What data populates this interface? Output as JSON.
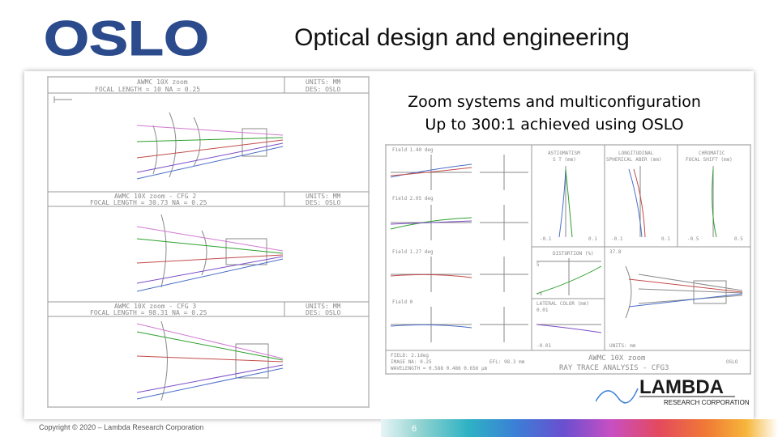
{
  "slide": {
    "logo_text": "OSLO",
    "title": "Optical design and engineering",
    "caption_line1": "Zoom systems and multiconfiguration",
    "caption_line2": "Up to 300:1 achieved using OSLO",
    "copyright": "Copyright © 2020 – Lambda Research Corporation",
    "page_number": "6"
  },
  "zoom_panel": {
    "configs": [
      {
        "title": "AWMC 10X zoom",
        "focal": "FOCAL LENGTH = 10   NA = 0.25",
        "units": "UNITS: MM",
        "des": "DES: OSLO"
      },
      {
        "title": "AWMC 10X zoom - CFG 2",
        "focal": "FOCAL LENGTH = 30.73   NA = 0.25",
        "units": "UNITS: MM",
        "des": "DES: OSLO"
      },
      {
        "title": "AWMC 10X zoom - CFG 3",
        "focal": "FOCAL LENGTH = 98.31   NA = 0.25",
        "units": "UNITS: MM",
        "des": "DES: OSLO"
      }
    ]
  },
  "analysis_panel": {
    "field_labels": [
      "Field 1.40 deg",
      "Field 2.05 deg",
      "Field 1.27 deg",
      "Field 0"
    ],
    "plot_titles": {
      "astigmatism": "ASTIGMATISM",
      "astig_units": "S T (mm)",
      "longitudinal": "LONGITUDINAL",
      "spherical": "SPHERICAL ABER (mm)",
      "chromatic": "CHROMATIC",
      "focal_shift": "FOCAL SHIFT (mm)",
      "distortion": "DISTORTION (%)",
      "lateral_color": "LATERAL COLOR (mm)"
    },
    "ticks": {
      "astig_min": "-0.1",
      "astig_max": "0.1",
      "sph_min": "-0.1",
      "sph_max": "0.1",
      "chrom_min": "-0.5",
      "chrom_max": "0.5",
      "dist_min": "-5",
      "dist_max": "5",
      "lat_top": "0.01",
      "lat_bottom": "-0.01",
      "scale": "37.8"
    },
    "bottom": {
      "field": "FIELD: 2.1deg",
      "na": "IMAGE NA: 0.25",
      "wavelength": "WAVELENGTH = 0.588  0.486  0.656 µm",
      "efl": "EFL: 98.3 mm",
      "units": "UNITS: mm",
      "title": "AWMC 10X zoom",
      "subtitle": "RAY TRACE ANALYSIS - CFG3",
      "brand": "OSLO"
    }
  },
  "lambda_logo": {
    "name": "LAMBDA",
    "sub": "RESEARCH CORPORATION"
  },
  "colors": {
    "oslo_blue": "#2b4b8c",
    "footer_gradient": [
      "#8fd3d0",
      "#2eb2c4",
      "#3b7fd6",
      "#6a4fd0",
      "#c74fc2",
      "#e4495d",
      "#f07a35",
      "#f6b63a"
    ]
  }
}
